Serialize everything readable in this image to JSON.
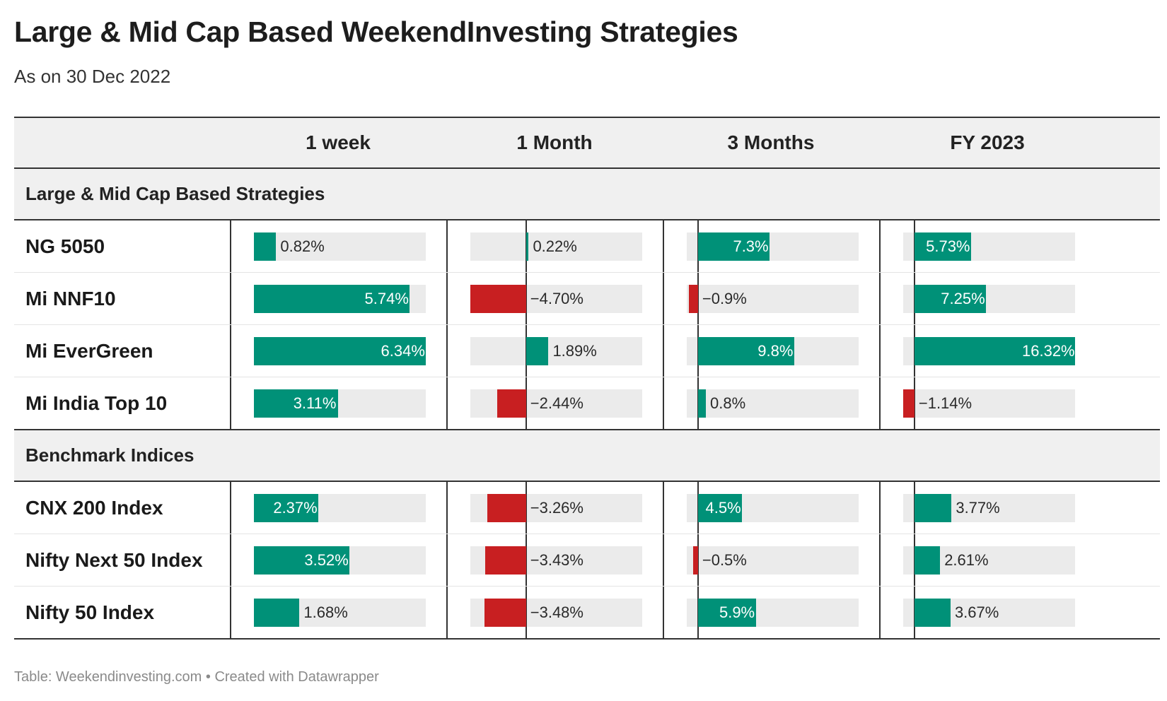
{
  "title": "Large & Mid Cap Based WeekendInvesting Strategies",
  "subtitle": "As on 30 Dec 2022",
  "footer": "Table: Weekendinvesting.com • Created with Datawrapper",
  "colors": {
    "positive": "#009178",
    "negative": "#c81f21",
    "track": "#ebebeb",
    "header_bg": "#f0f0f0"
  },
  "chart_data": {
    "type": "table",
    "columns": [
      "1 week",
      "1 Month",
      "3 Months",
      "FY 2023"
    ],
    "groups": [
      {
        "label": "Large & Mid Cap Based Strategies",
        "rows": [
          {
            "name": "NG 5050",
            "values": [
              0.82,
              0.22,
              7.3,
              5.73
            ],
            "labels": [
              "0.82%",
              "0.22%",
              "7.3%",
              "5.73%"
            ]
          },
          {
            "name": "Mi NNF10",
            "values": [
              5.74,
              -4.7,
              -0.9,
              7.25
            ],
            "labels": [
              "5.74%",
              "−4.70%",
              "−0.9%",
              "7.25%"
            ]
          },
          {
            "name": "Mi EverGreen",
            "values": [
              6.34,
              1.89,
              9.8,
              16.32
            ],
            "labels": [
              "6.34%",
              "1.89%",
              "9.8%",
              "16.32%"
            ]
          },
          {
            "name": "Mi India Top 10",
            "values": [
              3.11,
              -2.44,
              0.8,
              -1.14
            ],
            "labels": [
              "3.11%",
              "−2.44%",
              "0.8%",
              "−1.14%"
            ]
          }
        ]
      },
      {
        "label": "Benchmark Indices",
        "rows": [
          {
            "name": "CNX 200 Index",
            "values": [
              2.37,
              -3.26,
              4.5,
              3.77
            ],
            "labels": [
              "2.37%",
              "−3.26%",
              "4.5%",
              "3.77%"
            ]
          },
          {
            "name": "Nifty Next 50 Index",
            "values": [
              3.52,
              -3.43,
              -0.5,
              2.61
            ],
            "labels": [
              "3.52%",
              "−3.43%",
              "−0.5%",
              "2.61%"
            ]
          },
          {
            "name": "Nifty 50 Index",
            "values": [
              1.68,
              -3.48,
              5.9,
              3.67
            ],
            "labels": [
              "1.68%",
              "−3.48%",
              "5.9%",
              "3.67%"
            ]
          }
        ]
      }
    ],
    "column_ranges": [
      [
        0,
        6.34
      ],
      [
        -4.7,
        9.8
      ],
      [
        -1.14,
        16.32
      ],
      [
        -1.14,
        16.32
      ]
    ]
  }
}
